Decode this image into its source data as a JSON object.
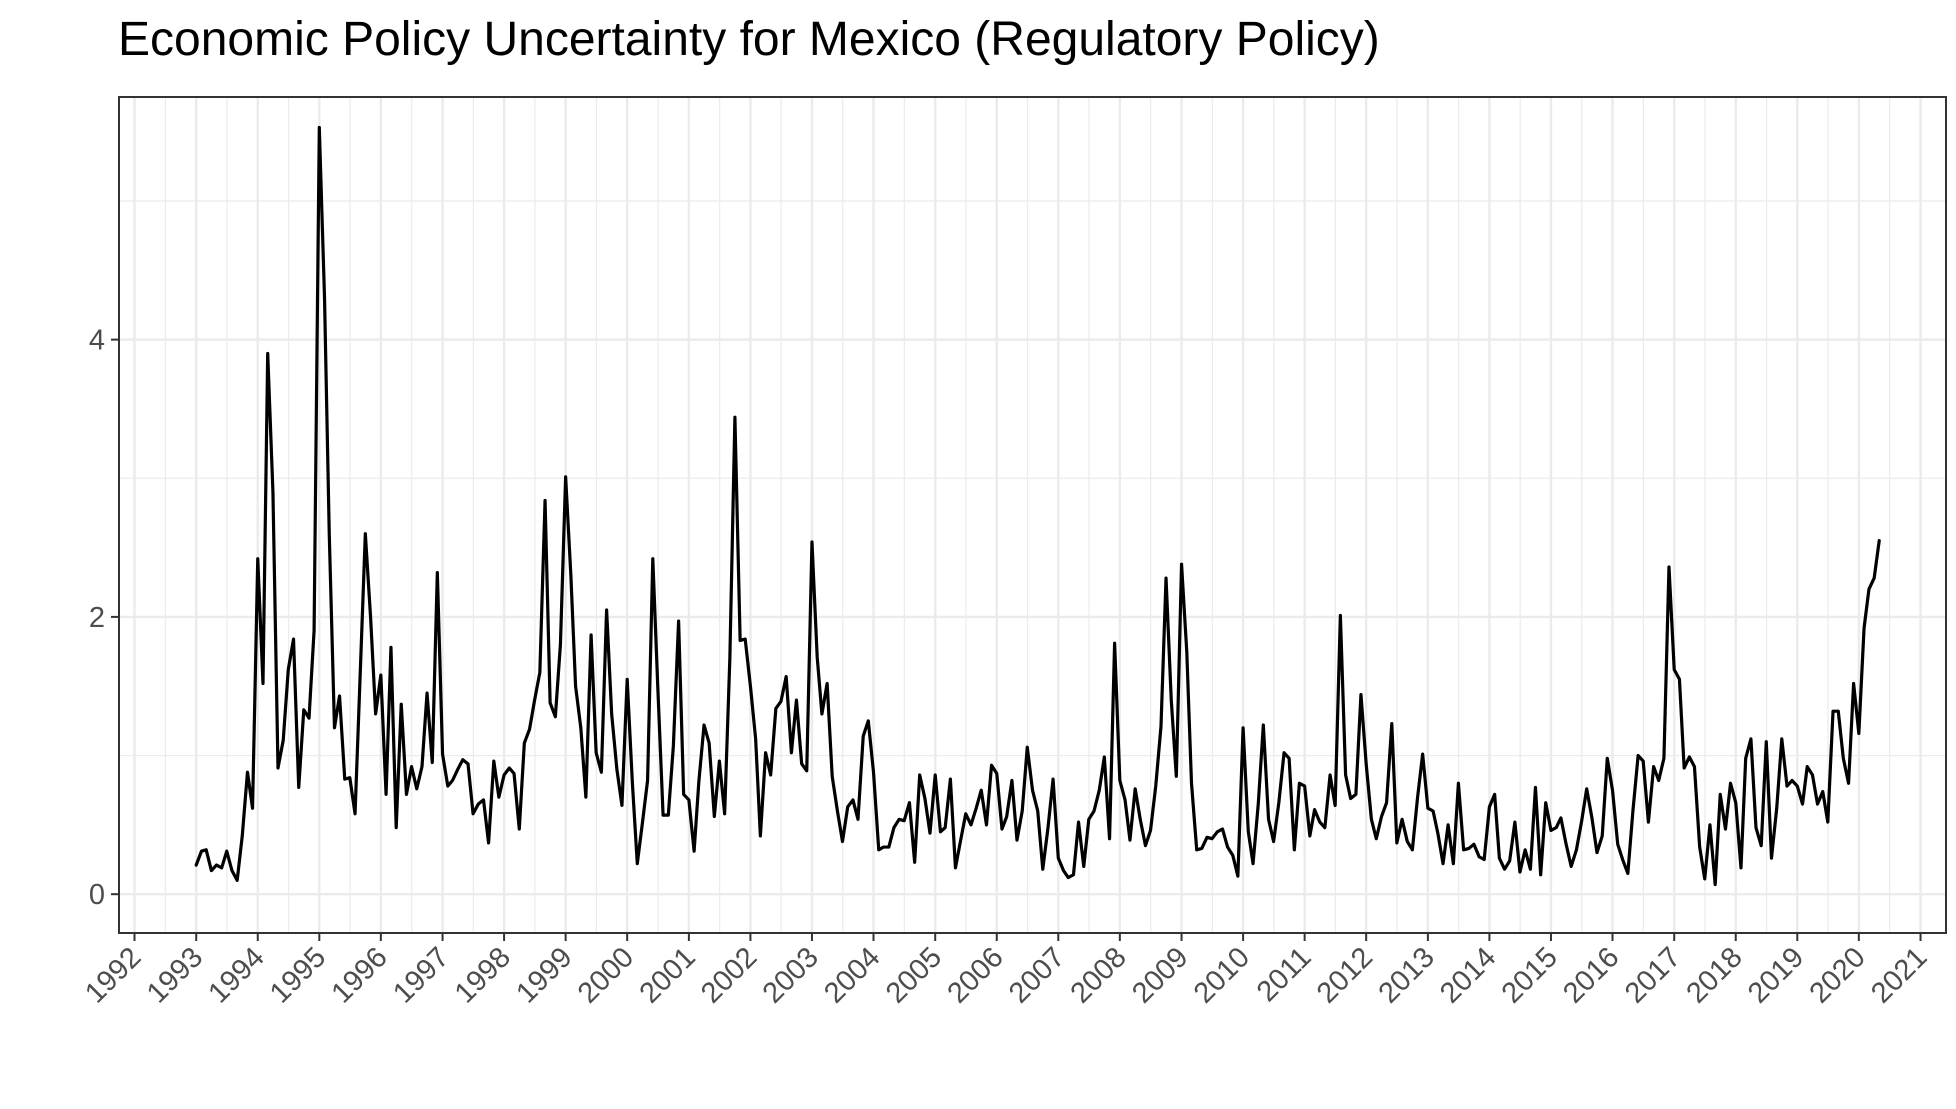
{
  "chart_data": {
    "type": "line",
    "title": "Economic Policy Uncertainty for Mexico (Regulatory Policy)",
    "xlabel": "",
    "ylabel": "",
    "x_axis": "date",
    "xlim": [
      "1991-10-01",
      "2021-06-01"
    ],
    "ylim": [
      -0.28,
      5.75
    ],
    "xticks": [
      {
        "date": "1992-01-01",
        "label": "1992"
      },
      {
        "date": "1993-01-01",
        "label": "1993"
      },
      {
        "date": "1994-01-01",
        "label": "1994"
      },
      {
        "date": "1995-01-01",
        "label": "1995"
      },
      {
        "date": "1996-01-01",
        "label": "1996"
      },
      {
        "date": "1997-01-01",
        "label": "1997"
      },
      {
        "date": "1998-01-01",
        "label": "1998"
      },
      {
        "date": "1999-01-01",
        "label": "1999"
      },
      {
        "date": "2000-01-01",
        "label": "2000"
      },
      {
        "date": "2001-01-01",
        "label": "2001"
      },
      {
        "date": "2002-01-01",
        "label": "2002"
      },
      {
        "date": "2003-01-01",
        "label": "2003"
      },
      {
        "date": "2004-01-01",
        "label": "2004"
      },
      {
        "date": "2005-01-01",
        "label": "2005"
      },
      {
        "date": "2006-01-01",
        "label": "2006"
      },
      {
        "date": "2007-01-01",
        "label": "2007"
      },
      {
        "date": "2008-01-01",
        "label": "2008"
      },
      {
        "date": "2009-01-01",
        "label": "2009"
      },
      {
        "date": "2010-01-01",
        "label": "2010"
      },
      {
        "date": "2011-01-01",
        "label": "2011"
      },
      {
        "date": "2012-01-01",
        "label": "2012"
      },
      {
        "date": "2013-01-01",
        "label": "2013"
      },
      {
        "date": "2014-01-01",
        "label": "2014"
      },
      {
        "date": "2015-01-01",
        "label": "2015"
      },
      {
        "date": "2016-01-01",
        "label": "2016"
      },
      {
        "date": "2017-01-01",
        "label": "2017"
      },
      {
        "date": "2018-01-01",
        "label": "2018"
      },
      {
        "date": "2019-01-01",
        "label": "2019"
      },
      {
        "date": "2020-01-01",
        "label": "2020"
      },
      {
        "date": "2021-01-01",
        "label": "2021"
      }
    ],
    "yticks": [
      {
        "value": 0,
        "label": "0"
      },
      {
        "value": 2,
        "label": "2"
      },
      {
        "value": 4,
        "label": "4"
      }
    ],
    "grid": true,
    "legend": "none",
    "colors": {
      "line": "#000000",
      "grid": "#ebebeb",
      "border": "#333333",
      "tick_text": "#4d4d4d",
      "background": "#ffffff"
    },
    "series": [
      {
        "start": "1993-01",
        "frequency": "monthly",
        "values": [
          0.21,
          0.31,
          0.32,
          0.17,
          0.21,
          0.19,
          0.31,
          0.17,
          0.1,
          0.42,
          0.88,
          0.62,
          2.42,
          1.52,
          3.9,
          2.9,
          0.91,
          1.11,
          1.62,
          1.84,
          0.77,
          1.33,
          1.27,
          1.9,
          5.53,
          4.3,
          2.6,
          1.2,
          1.43,
          0.83,
          0.84,
          0.58,
          1.6,
          2.6,
          2.0,
          1.3,
          1.58,
          0.72,
          1.78,
          0.48,
          1.37,
          0.72,
          0.92,
          0.76,
          0.92,
          1.45,
          0.95,
          2.32,
          1.01,
          0.78,
          0.82,
          0.9,
          0.97,
          0.94,
          0.58,
          0.65,
          0.68,
          0.37,
          0.96,
          0.7,
          0.86,
          0.91,
          0.87,
          0.47,
          1.09,
          1.19,
          1.4,
          1.6,
          2.84,
          1.38,
          1.28,
          1.8,
          3.01,
          2.3,
          1.5,
          1.2,
          0.7,
          1.87,
          1.02,
          0.88,
          2.05,
          1.3,
          0.9,
          0.64,
          1.55,
          0.8,
          0.22,
          0.52,
          0.82,
          2.42,
          1.48,
          0.57,
          0.57,
          1.07,
          1.97,
          0.72,
          0.68,
          0.31,
          0.81,
          1.22,
          1.09,
          0.56,
          0.96,
          0.58,
          1.7,
          3.44,
          1.83,
          1.84,
          1.5,
          1.12,
          0.42,
          1.02,
          0.86,
          1.34,
          1.39,
          1.57,
          1.02,
          1.4,
          0.94,
          0.89,
          2.54,
          1.71,
          1.3,
          1.52,
          0.85,
          0.6,
          0.38,
          0.63,
          0.68,
          0.54,
          1.14,
          1.25,
          0.88,
          0.32,
          0.34,
          0.34,
          0.48,
          0.54,
          0.53,
          0.66,
          0.23,
          0.86,
          0.69,
          0.44,
          0.86,
          0.45,
          0.48,
          0.83,
          0.19,
          0.39,
          0.58,
          0.5,
          0.62,
          0.75,
          0.5,
          0.93,
          0.87,
          0.47,
          0.56,
          0.82,
          0.39,
          0.6,
          1.06,
          0.75,
          0.6,
          0.18,
          0.48,
          0.83,
          0.26,
          0.17,
          0.12,
          0.14,
          0.52,
          0.2,
          0.54,
          0.6,
          0.75,
          0.99,
          0.4,
          1.81,
          0.82,
          0.68,
          0.39,
          0.76,
          0.54,
          0.35,
          0.46,
          0.78,
          1.21,
          2.28,
          1.4,
          0.85,
          2.38,
          1.75,
          0.8,
          0.32,
          0.33,
          0.41,
          0.4,
          0.45,
          0.47,
          0.34,
          0.28,
          0.13,
          1.2,
          0.45,
          0.22,
          0.65,
          1.22,
          0.54,
          0.38,
          0.66,
          1.02,
          0.98,
          0.32,
          0.8,
          0.78,
          0.42,
          0.61,
          0.52,
          0.48,
          0.86,
          0.64,
          2.01,
          0.86,
          0.69,
          0.72,
          1.44,
          0.94,
          0.54,
          0.4,
          0.56,
          0.66,
          1.23,
          0.37,
          0.54,
          0.38,
          0.32,
          0.7,
          1.01,
          0.62,
          0.6,
          0.44,
          0.22,
          0.5,
          0.22,
          0.8,
          0.32,
          0.33,
          0.36,
          0.27,
          0.25,
          0.63,
          0.72,
          0.26,
          0.18,
          0.24,
          0.52,
          0.16,
          0.32,
          0.18,
          0.77,
          0.14,
          0.66,
          0.46,
          0.48,
          0.55,
          0.36,
          0.2,
          0.32,
          0.52,
          0.76,
          0.55,
          0.3,
          0.42,
          0.98,
          0.75,
          0.36,
          0.25,
          0.15,
          0.6,
          1.0,
          0.96,
          0.52,
          0.92,
          0.82,
          0.98,
          2.36,
          1.62,
          1.55,
          0.91,
          0.99,
          0.92,
          0.34,
          0.11,
          0.5,
          0.07,
          0.72,
          0.47,
          0.8,
          0.66,
          0.19,
          0.98,
          1.12,
          0.48,
          0.35,
          1.1,
          0.26,
          0.62,
          1.12,
          0.78,
          0.82,
          0.78,
          0.65,
          0.92,
          0.86,
          0.65,
          0.74,
          0.52,
          1.32,
          1.32,
          0.98,
          0.8,
          1.52,
          1.16,
          1.92,
          2.2,
          2.28,
          2.55
        ]
      }
    ]
  }
}
